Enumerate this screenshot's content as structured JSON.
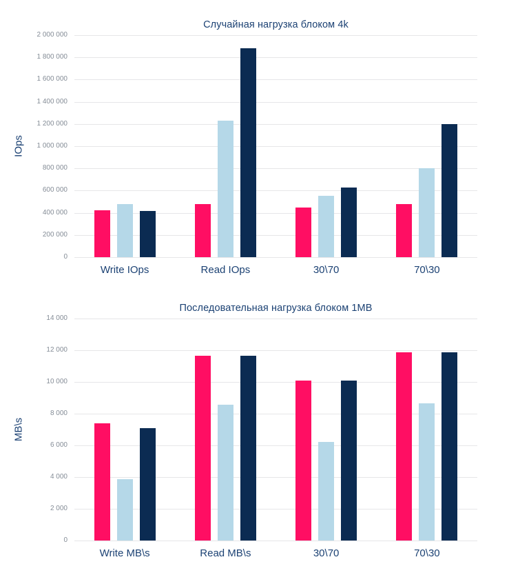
{
  "page": {
    "background_color": "#ffffff",
    "text_color": "#1b4173",
    "tick_color": "#848c96",
    "gridline_color": "#e6e6e8"
  },
  "chart_data": [
    {
      "type": "bar",
      "title": "Случайная нагрузка блоком 4k",
      "xlabel": "",
      "ylabel": "IOps",
      "categories": [
        "Write IOps",
        "Read IOps",
        "30\\70",
        "70\\30"
      ],
      "series": [
        {
          "name": "pink",
          "color": "#ff0e63",
          "values": [
            425000,
            480000,
            445000,
            480000
          ]
        },
        {
          "name": "light-blue",
          "color": "#b5d8e8",
          "values": [
            480000,
            1230000,
            555000,
            800000
          ]
        },
        {
          "name": "navy",
          "color": "#0b2b52",
          "values": [
            415000,
            1880000,
            630000,
            1200000
          ]
        }
      ],
      "ylim": [
        0,
        2000000
      ],
      "ytick_step": 200000,
      "ytick_labels": [
        "0",
        "200 000",
        "400 000",
        "600 000",
        "800 000",
        "1 000 000",
        "1 200 000",
        "1 400 000",
        "1 600 000",
        "1 800 000",
        "2 000 000"
      ],
      "grid": true,
      "legend": "none"
    },
    {
      "type": "bar",
      "title": "Последовательная нагрузка блоком 1MB",
      "xlabel": "",
      "ylabel": "MB\\s",
      "categories": [
        "Write MB\\s",
        "Read MB\\s",
        "30\\70",
        "70\\30"
      ],
      "series": [
        {
          "name": "pink",
          "color": "#ff0e63",
          "values": [
            7400,
            11650,
            10100,
            11850
          ]
        },
        {
          "name": "light-blue",
          "color": "#b5d8e8",
          "values": [
            3850,
            8550,
            6200,
            8650
          ]
        },
        {
          "name": "navy",
          "color": "#0b2b52",
          "values": [
            7100,
            11650,
            10100,
            11850
          ]
        }
      ],
      "ylim": [
        0,
        14000
      ],
      "ytick_step": 2000,
      "ytick_labels": [
        "0",
        "2 000",
        "4 000",
        "6 000",
        "8 000",
        "10 000",
        "12 000",
        "14 000"
      ],
      "grid": true,
      "legend": "none"
    }
  ]
}
